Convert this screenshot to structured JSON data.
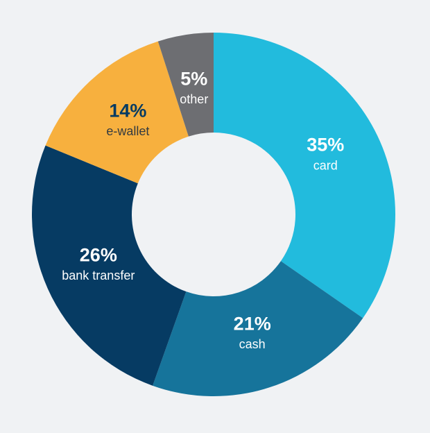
{
  "chart_data": {
    "type": "donut",
    "categories": [
      "card",
      "cash",
      "bank transfer",
      "e-wallet",
      "other"
    ],
    "values": [
      35,
      21,
      26,
      14,
      5
    ],
    "value_labels": [
      "35%",
      "21%",
      "26%",
      "14%",
      "5%"
    ],
    "colors": [
      "#22bbdd",
      "#16749b",
      "#063b63",
      "#f7b03e",
      "#6d6e72"
    ]
  }
}
